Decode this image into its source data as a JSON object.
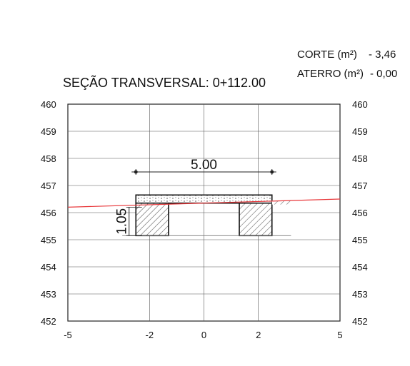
{
  "volumes": {
    "corte_label": "CORTE (m²)",
    "corte_value": "- 3,46",
    "aterro_label": "ATERRO (m²)",
    "aterro_value": "- 0,00"
  },
  "title": "SEÇÃO TRANSVERSAL: 0+112.00",
  "chart_data": {
    "type": "cross-section",
    "x_ticks": [
      -5,
      -2,
      0,
      2,
      5
    ],
    "x_tick_labels": [
      "-5",
      "-2",
      "0",
      "2",
      "5"
    ],
    "y_ticks": [
      460,
      459,
      458,
      457,
      456,
      455,
      454,
      453,
      452
    ],
    "y_tick_labels": [
      "460",
      "459",
      "458",
      "457",
      "456",
      "455",
      "454",
      "453",
      "452"
    ],
    "xlim": [
      -5,
      5
    ],
    "ylim": [
      452,
      460
    ],
    "grid": true,
    "terrain_line": {
      "color": "#e8383b",
      "x": [
        -5,
        5
      ],
      "y": [
        456.2,
        456.5
      ]
    },
    "platform": {
      "x": [
        -2.5,
        2.5
      ],
      "top": 456.65,
      "bottom": 456.35
    },
    "footings": [
      {
        "x": [
          -2.5,
          -1.3
        ],
        "top": 456.35,
        "bottom": 455.15
      },
      {
        "x": [
          1.3,
          2.5
        ],
        "top": 456.35,
        "bottom": 455.15
      }
    ],
    "dimension_width": {
      "label": "5.00",
      "x": [
        -2.5,
        2.5
      ],
      "y": 457.5
    },
    "dimension_height": {
      "label": "1.05",
      "x": -2.75,
      "y": [
        455.15,
        456.2
      ]
    }
  }
}
